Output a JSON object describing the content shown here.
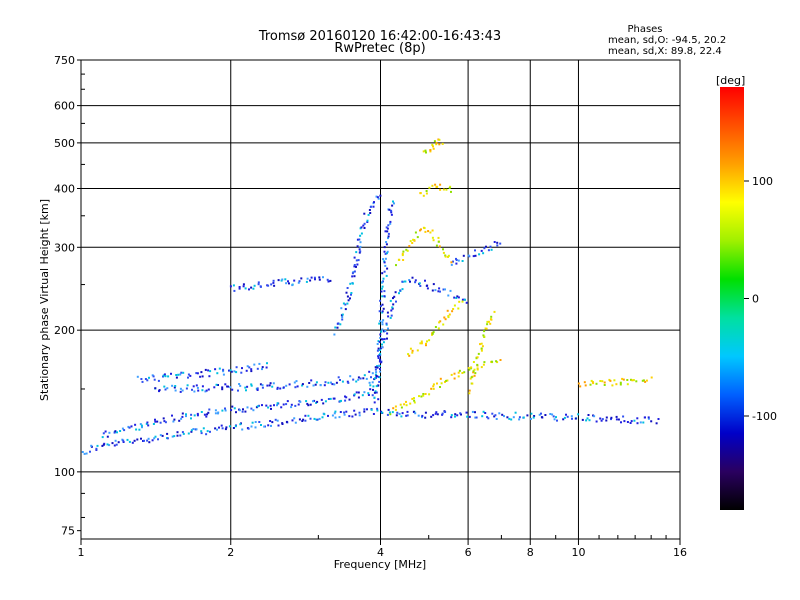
{
  "chart_data": {
    "type": "scatter",
    "title": "Tromsø 20160120 16:42:00-16:43:43",
    "subtitle": "RwPretec (8p)",
    "xlabel": "Frequency [MHz]",
    "ylabel": "Stationary phase Virtual Height [km]",
    "x_scale": "log",
    "y_scale": "log",
    "xlim": [
      1,
      16
    ],
    "ylim": [
      72,
      750
    ],
    "x_ticks": [
      1,
      2,
      4,
      6,
      8,
      10,
      16
    ],
    "x_tick_labels": [
      "1",
      "2",
      "4",
      "6",
      "8",
      "10",
      "16"
    ],
    "y_ticks": [
      75,
      100,
      200,
      300,
      400,
      500,
      600,
      750
    ],
    "y_tick_labels": [
      "75",
      "100",
      "200",
      "300",
      "400",
      "500",
      "600",
      "750"
    ],
    "grid": true,
    "phases": {
      "heading": "Phases",
      "o_line": "mean, sd,O: -94.5, 20.2",
      "x_line": "mean, sd,X:  89.8, 22.4"
    },
    "colorbar": {
      "label": "[deg]",
      "range": [
        -180,
        180
      ],
      "ticks": [
        100,
        0,
        -100
      ],
      "tick_labels": [
        "100",
        "0",
        "-100"
      ],
      "colormap": [
        "#000000",
        "#2a0060",
        "#0000c8",
        "#0060ff",
        "#00c8ff",
        "#00e0a0",
        "#00e000",
        "#a0f000",
        "#ffff00",
        "#ffa000",
        "#ff5000",
        "#ff0000"
      ]
    },
    "series": [
      {
        "name": "O",
        "color": "#1c1cd8",
        "traces": [
          {
            "x": [
              1.0,
              1.05,
              1.1,
              1.2,
              1.3,
              1.4,
              1.5,
              1.6,
              1.8,
              2.0,
              2.2,
              2.5,
              2.8,
              3.0,
              3.3,
              3.6,
              3.9,
              4.3,
              5.0,
              6.0,
              7.0,
              8.0,
              9.0,
              10.0,
              11.0,
              12.0,
              13.0,
              14.5
            ],
            "y": [
              110,
              113,
              114,
              116,
              117,
              119,
              120,
              121,
              123,
              125,
              126,
              128,
              130,
              131,
              133,
              134,
              135,
              134,
              133,
              133,
              132,
              132,
              131,
              131,
              130,
              130,
              129,
              129
            ]
          },
          {
            "x": [
              1.1,
              1.2,
              1.4,
              1.6,
              1.8,
              2.0,
              2.3,
              2.6,
              3.0,
              3.3,
              3.6,
              3.9
            ],
            "y": [
              120,
              123,
              128,
              132,
              134,
              136,
              138,
              140,
              142,
              144,
              146,
              148
            ]
          },
          {
            "x": [
              1.4,
              1.6,
              1.8,
              2.0,
              2.2,
              2.4,
              2.7,
              3.0,
              3.3,
              3.6,
              3.9
            ],
            "y": [
              150,
              151,
              151,
              152,
              152,
              153,
              154,
              155,
              157,
              159,
              162
            ]
          },
          {
            "x": [
              1.3,
              1.5,
              1.7,
              1.9,
              2.1,
              2.4
            ],
            "y": [
              158,
              160,
              162,
              164,
              166,
              170
            ]
          },
          {
            "x": [
              2.0,
              2.2,
              2.4,
              2.7,
              3.0,
              3.2
            ],
            "y": [
              245,
              250,
              252,
              255,
              258,
              260
            ]
          },
          {
            "x": [
              3.2,
              3.3,
              3.4,
              3.5,
              3.6,
              3.7,
              3.8,
              3.9,
              4.0
            ],
            "y": [
              200,
              210,
              230,
              260,
              300,
              340,
              370,
              380,
              385
            ]
          },
          {
            "x": [
              3.9,
              3.95,
              4.0,
              4.05,
              4.1,
              4.2
            ],
            "y": [
              140,
              170,
              210,
              260,
              320,
              380
            ]
          },
          {
            "x": [
              3.8,
              4.0,
              4.2,
              4.5,
              5.0,
              5.5,
              6.0
            ],
            "y": [
              150,
              180,
              230,
              260,
              250,
              240,
              230
            ]
          },
          {
            "x": [
              5.5,
              6.0,
              6.5,
              7.0
            ],
            "y": [
              280,
              290,
              300,
              310
            ]
          }
        ]
      },
      {
        "name": "X",
        "color": "#f0e000",
        "traces": [
          {
            "x": [
              4.3,
              4.5,
              4.7,
              4.9,
              5.1,
              5.3,
              5.5
            ],
            "y": [
              280,
              300,
              320,
              330,
              320,
              300,
              280
            ]
          },
          {
            "x": [
              4.5,
              4.7,
              4.9,
              5.1,
              5.3,
              5.5,
              5.8
            ],
            "y": [
              180,
              185,
              190,
              200,
              210,
              220,
              230
            ]
          },
          {
            "x": [
              4.8,
              5.0,
              5.2,
              5.4,
              5.6
            ],
            "y": [
              390,
              400,
              405,
              400,
              395
            ]
          },
          {
            "x": [
              4.9,
              5.0,
              5.1,
              5.2,
              5.3
            ],
            "y": [
              480,
              490,
              500,
              505,
              500
            ]
          },
          {
            "x": [
              4.2,
              4.5,
              5.0,
              5.5,
              6.0,
              6.5,
              7.0
            ],
            "y": [
              135,
              140,
              150,
              160,
              165,
              170,
              172
            ]
          },
          {
            "x": [
              6.0,
              6.2,
              6.4,
              6.6,
              6.8
            ],
            "y": [
              150,
              170,
              190,
              210,
              220
            ]
          },
          {
            "x": [
              10.0,
              11.0,
              12.0,
              13.0,
              14.0
            ],
            "y": [
              155,
              156,
              156,
              157,
              157
            ]
          }
        ]
      }
    ]
  }
}
